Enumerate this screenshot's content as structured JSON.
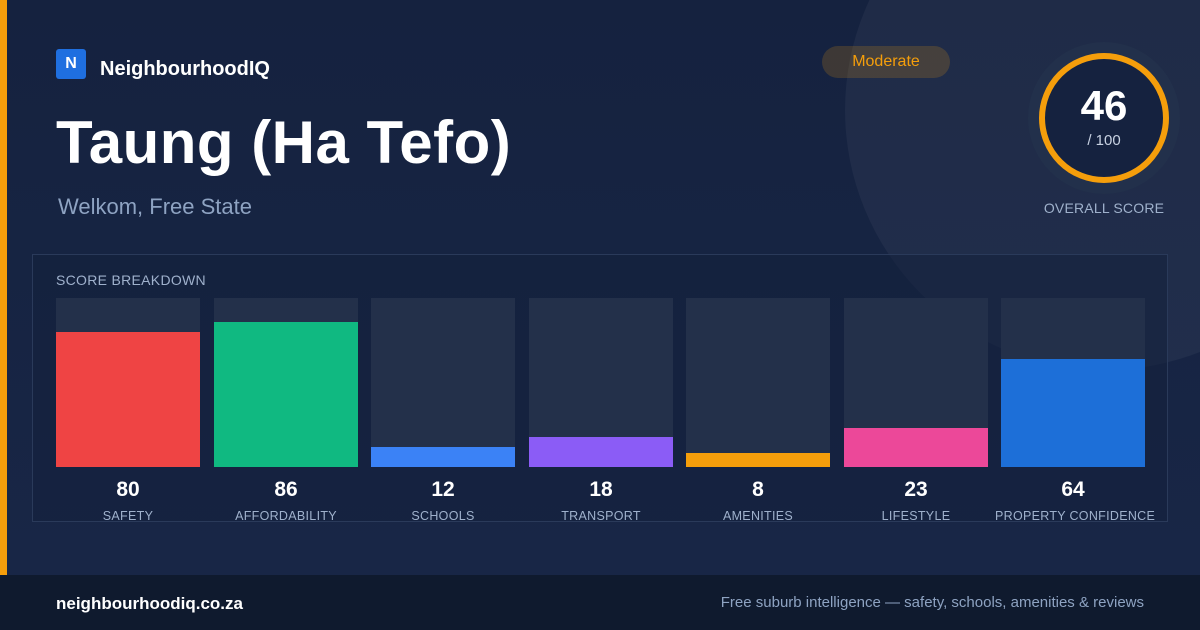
{
  "brand": {
    "logo_letter": "N",
    "name": "NeighbourhoodIQ"
  },
  "suburb": {
    "name": "Taung (Ha Tefo)",
    "location": "Welkom, Free State"
  },
  "badge": {
    "label": "Moderate",
    "color": "#f59e0b"
  },
  "overall": {
    "score": "46",
    "max_label": "/ 100",
    "caption": "OVERALL SCORE",
    "fraction": 0.46,
    "ring_color": "#f59e0b"
  },
  "breakdown": {
    "title": "SCORE BREAKDOWN",
    "max": 100,
    "items": [
      {
        "label": "SAFETY",
        "value": 80,
        "color": "#ef4444"
      },
      {
        "label": "AFFORDABILITY",
        "value": 86,
        "color": "#10b981"
      },
      {
        "label": "SCHOOLS",
        "value": 12,
        "color": "#3b82f6"
      },
      {
        "label": "TRANSPORT",
        "value": 18,
        "color": "#8b5cf6"
      },
      {
        "label": "AMENITIES",
        "value": 8,
        "color": "#f59e0b"
      },
      {
        "label": "LIFESTYLE",
        "value": 23,
        "color": "#ec4899"
      },
      {
        "label": "PROPERTY CONFIDENCE",
        "value": 64,
        "color": "#1d6fd8"
      }
    ]
  },
  "footer": {
    "url": "neighbourhoodiq.co.za",
    "tagline": "Free suburb intelligence — safety, schools, amenities & reviews"
  }
}
